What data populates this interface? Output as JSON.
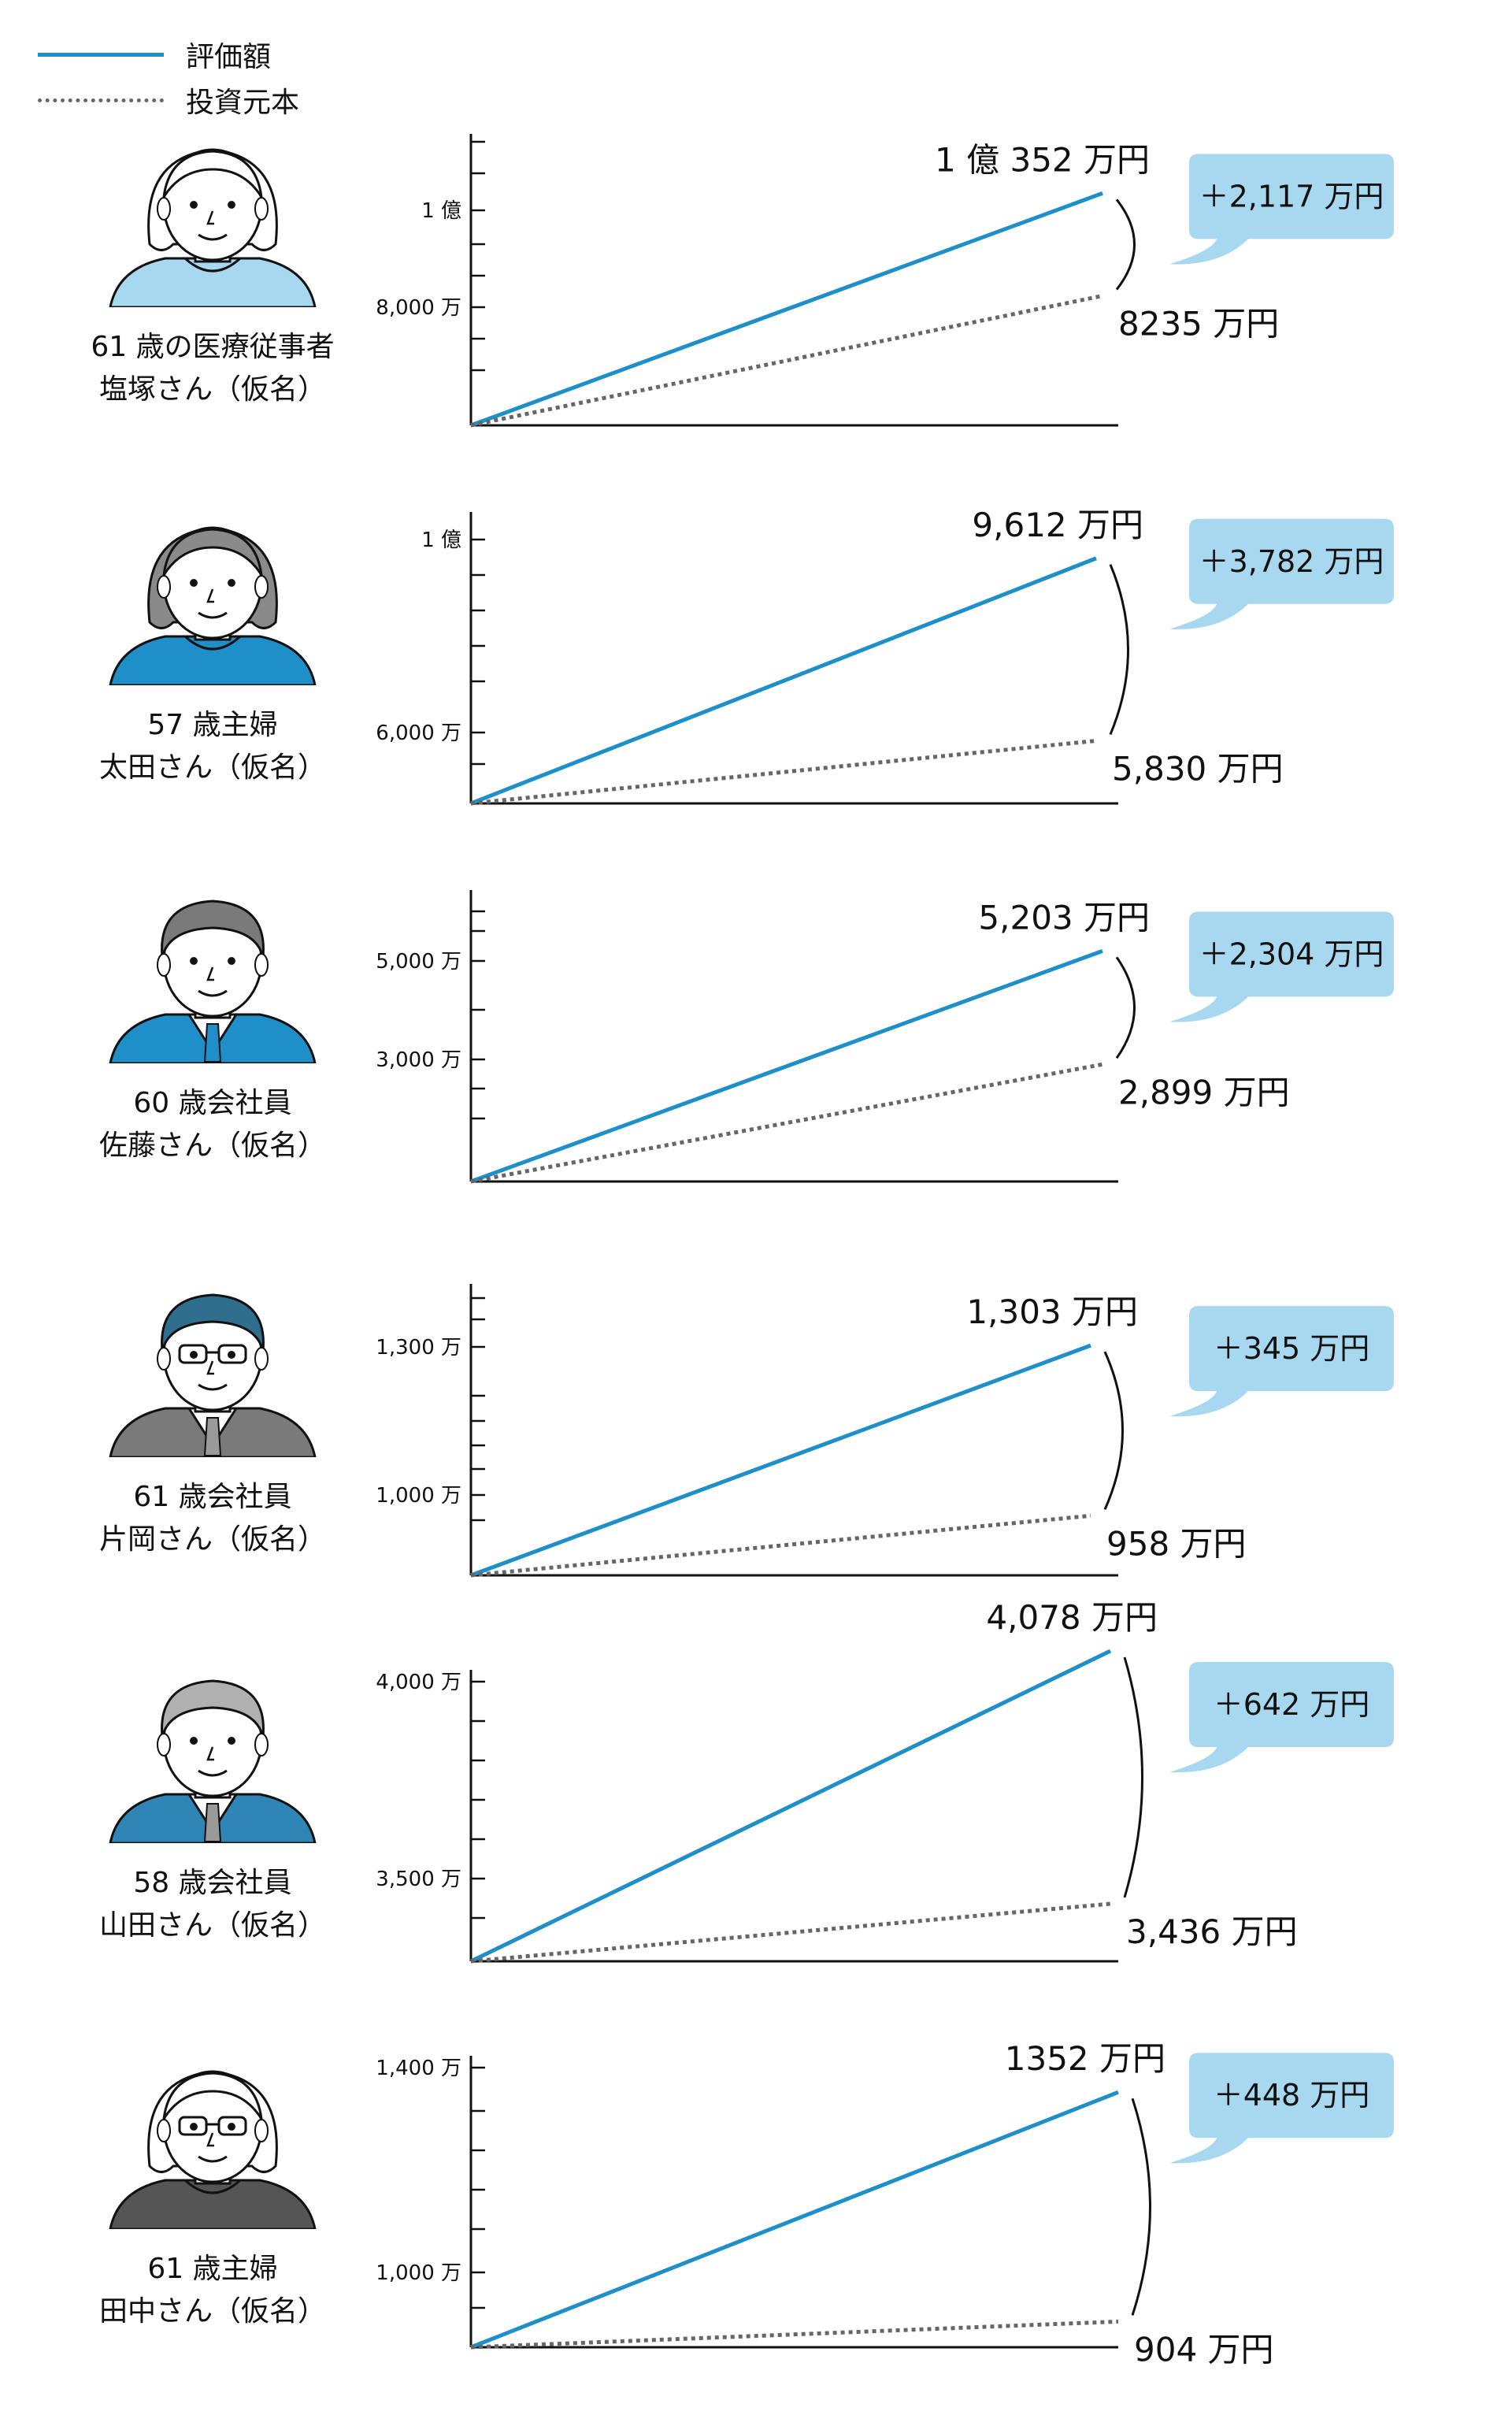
{
  "legend": {
    "items": [
      {
        "label": "評価額",
        "style": "solid",
        "color": "#1f8fc9"
      },
      {
        "label": "投資元本",
        "style": "dotted",
        "color": "#666666"
      }
    ]
  },
  "people": [
    {
      "age": "61 歳の医療従事者",
      "name": "塩塚さん（仮名）",
      "avatar": "woman-short-hair-icon",
      "hair_color": "#ffffff",
      "shirt_color": "#a8d8f0"
    },
    {
      "age": "57 歳主婦",
      "name": "太田さん（仮名）",
      "avatar": "woman-bob-hair-icon",
      "hair_color": "#8a8a8a",
      "shirt_color": "#1f8fc9"
    },
    {
      "age": "60 歳会社員",
      "name": "佐藤さん（仮名）",
      "avatar": "man-suit-icon",
      "hair_color": "#7a7a7a",
      "shirt_color": "#1f8fc9"
    },
    {
      "age": "61 歳会社員",
      "name": "片岡さん（仮名）",
      "avatar": "man-glasses-icon",
      "hair_color": "#2f6e8c",
      "shirt_color": "#7a7a7a"
    },
    {
      "age": "58 歳会社員",
      "name": "山田さん（仮名）",
      "avatar": "man-gray-hair-icon",
      "hair_color": "#b0b0b0",
      "shirt_color": "#2f85b5"
    },
    {
      "age": "61 歳主婦",
      "name": "田中さん（仮名）",
      "avatar": "woman-glasses-icon",
      "hair_color": "#ffffff",
      "shirt_color": "#555555"
    }
  ],
  "chart_data": [
    {
      "type": "line",
      "series": [
        {
          "name": "評価額",
          "end": 10352
        },
        {
          "name": "投資元本",
          "end": 8235
        }
      ],
      "labels": {
        "value_end": "1 億 352 万円",
        "principal_end": "8235 万円",
        "gain": "＋2,117 万円"
      },
      "yticks": [
        {
          "value": 10000,
          "label": "1 億"
        },
        {
          "value": 8000,
          "label": "8,000 万"
        }
      ]
    },
    {
      "type": "line",
      "series": [
        {
          "name": "評価額",
          "end": 9612
        },
        {
          "name": "投資元本",
          "end": 5830
        }
      ],
      "labels": {
        "value_end": "9,612 万円",
        "principal_end": "5,830 万円",
        "gain": "＋3,782 万円"
      },
      "yticks": [
        {
          "value": 10000,
          "label": "1 億"
        },
        {
          "value": 6000,
          "label": "6,000 万"
        }
      ]
    },
    {
      "type": "line",
      "series": [
        {
          "name": "評価額",
          "end": 5203
        },
        {
          "name": "投資元本",
          "end": 2899
        }
      ],
      "labels": {
        "value_end": "5,203 万円",
        "principal_end": "2,899 万円",
        "gain": "＋2,304 万円"
      },
      "yticks": [
        {
          "value": 5000,
          "label": "5,000 万"
        },
        {
          "value": 3000,
          "label": "3,000 万"
        }
      ]
    },
    {
      "type": "line",
      "series": [
        {
          "name": "評価額",
          "end": 1303
        },
        {
          "name": "投資元本",
          "end": 958
        }
      ],
      "labels": {
        "value_end": "1,303 万円",
        "principal_end": "958 万円",
        "gain": "＋345 万円"
      },
      "yticks": [
        {
          "value": 1300,
          "label": "1,300 万"
        },
        {
          "value": 1000,
          "label": "1,000 万"
        }
      ]
    },
    {
      "type": "line",
      "series": [
        {
          "name": "評価額",
          "end": 4078
        },
        {
          "name": "投資元本",
          "end": 3436
        }
      ],
      "labels": {
        "value_end": "4,078 万円",
        "principal_end": "3,436 万円",
        "gain": "＋642 万円"
      },
      "yticks": [
        {
          "value": 4000,
          "label": "4,000 万"
        },
        {
          "value": 3500,
          "label": "3,500 万"
        }
      ]
    },
    {
      "type": "line",
      "series": [
        {
          "name": "評価額",
          "end": 1352
        },
        {
          "name": "投資元本",
          "end": 904
        }
      ],
      "labels": {
        "value_end": "1352 万円",
        "principal_end": "904 万円",
        "gain": "＋448 万円"
      },
      "yticks": [
        {
          "value": 1400,
          "label": "1,400 万"
        },
        {
          "value": 1000,
          "label": "1,000 万"
        }
      ]
    }
  ]
}
